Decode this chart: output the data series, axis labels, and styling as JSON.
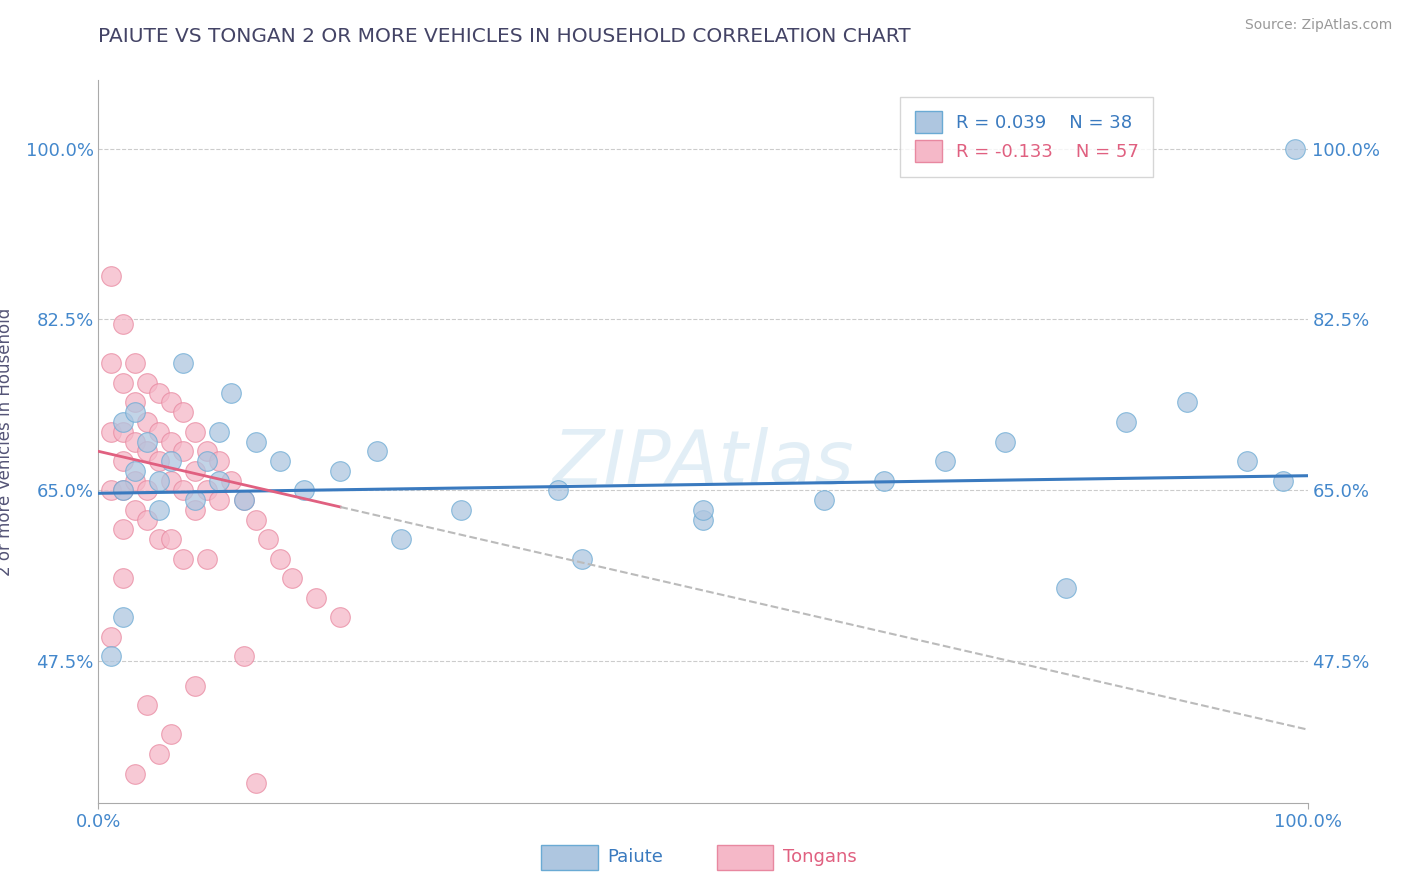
{
  "title": "PAIUTE VS TONGAN 2 OR MORE VEHICLES IN HOUSEHOLD CORRELATION CHART",
  "source": "Source: ZipAtlas.com",
  "ylabel": "2 or more Vehicles in Household",
  "y_tick_labels": [
    "47.5%",
    "65.0%",
    "82.5%",
    "100.0%"
  ],
  "y_tick_values": [
    0.475,
    0.65,
    0.825,
    1.0
  ],
  "xlim": [
    0.0,
    1.0
  ],
  "ylim": [
    0.33,
    1.07
  ],
  "legend_R1": "R = 0.039",
  "legend_N1": "N = 38",
  "legend_R2": "R = -0.133",
  "legend_N2": "N = 57",
  "legend_label1": "Paiute",
  "legend_label2": "Tongans",
  "watermark": "ZIPAtlas",
  "paiute_color": "#aec6e0",
  "tongans_color": "#f5b8c8",
  "paiute_edge_color": "#6aaad4",
  "tongans_edge_color": "#e888a0",
  "paiute_line_color": "#3a7abf",
  "tongans_line_color": "#e06080",
  "grid_color": "#cccccc",
  "title_color": "#444466",
  "axis_label_color": "#555577",
  "tick_color": "#4488cc",
  "source_color": "#999999",
  "paiute_x": [
    0.01,
    0.02,
    0.02,
    0.02,
    0.03,
    0.03,
    0.04,
    0.05,
    0.05,
    0.06,
    0.07,
    0.08,
    0.09,
    0.1,
    0.1,
    0.11,
    0.12,
    0.13,
    0.15,
    0.17,
    0.2,
    0.23,
    0.3,
    0.38,
    0.5,
    0.6,
    0.65,
    0.7,
    0.75,
    0.8,
    0.85,
    0.9,
    0.95,
    0.98,
    0.5,
    0.25,
    0.4,
    0.99
  ],
  "paiute_y": [
    0.48,
    0.65,
    0.72,
    0.52,
    0.67,
    0.73,
    0.7,
    0.66,
    0.63,
    0.68,
    0.78,
    0.64,
    0.68,
    0.66,
    0.71,
    0.75,
    0.64,
    0.7,
    0.68,
    0.65,
    0.67,
    0.69,
    0.63,
    0.65,
    0.62,
    0.64,
    0.66,
    0.68,
    0.7,
    0.55,
    0.72,
    0.74,
    0.68,
    0.66,
    0.63,
    0.6,
    0.58,
    1.0
  ],
  "tongans_x": [
    0.01,
    0.01,
    0.01,
    0.01,
    0.01,
    0.02,
    0.02,
    0.02,
    0.02,
    0.02,
    0.02,
    0.02,
    0.03,
    0.03,
    0.03,
    0.03,
    0.03,
    0.04,
    0.04,
    0.04,
    0.04,
    0.04,
    0.05,
    0.05,
    0.05,
    0.05,
    0.06,
    0.06,
    0.06,
    0.06,
    0.07,
    0.07,
    0.07,
    0.07,
    0.08,
    0.08,
    0.08,
    0.09,
    0.09,
    0.09,
    0.1,
    0.1,
    0.11,
    0.12,
    0.13,
    0.14,
    0.15,
    0.16,
    0.18,
    0.2,
    0.12,
    0.08,
    0.05,
    0.13,
    0.03,
    0.06,
    0.04
  ],
  "tongans_y": [
    0.87,
    0.78,
    0.71,
    0.65,
    0.5,
    0.82,
    0.76,
    0.71,
    0.68,
    0.65,
    0.61,
    0.56,
    0.78,
    0.74,
    0.7,
    0.66,
    0.63,
    0.76,
    0.72,
    0.69,
    0.65,
    0.62,
    0.75,
    0.71,
    0.68,
    0.6,
    0.74,
    0.7,
    0.66,
    0.6,
    0.73,
    0.69,
    0.65,
    0.58,
    0.71,
    0.67,
    0.63,
    0.69,
    0.65,
    0.58,
    0.68,
    0.64,
    0.66,
    0.64,
    0.62,
    0.6,
    0.58,
    0.56,
    0.54,
    0.52,
    0.48,
    0.45,
    0.38,
    0.35,
    0.36,
    0.4,
    0.43
  ],
  "paiute_line_y0": 0.647,
  "paiute_line_y1": 0.665,
  "tongans_line_y0": 0.69,
  "tongans_line_y1": 0.405
}
